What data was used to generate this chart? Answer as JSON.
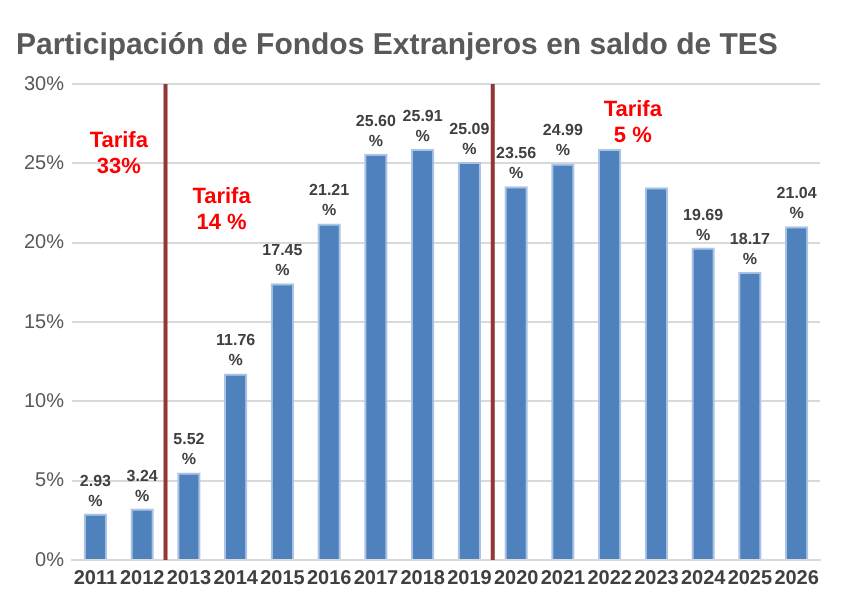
{
  "chart_data": {
    "type": "bar",
    "title": "Participación de Fondos Extranjeros en saldo de TES",
    "x": [
      2011,
      2012,
      2013,
      2014,
      2015,
      2016,
      2017,
      2018,
      2019,
      2020,
      2021,
      2022,
      2023,
      2024,
      2025,
      2026
    ],
    "values": [
      2.93,
      3.24,
      5.52,
      11.76,
      17.45,
      21.21,
      25.6,
      25.91,
      25.09,
      23.56,
      24.99,
      25.9,
      23.5,
      19.69,
      18.17,
      21.04
    ],
    "value_labels": [
      "2.93 %",
      "3.24 %",
      "5.52 %",
      "11.76 %",
      "17.45 %",
      "21.21 %",
      "25.60 %",
      "25.91 %",
      "25.09 %",
      "23.56 %",
      "24.99 %",
      null,
      null,
      "19.69 %",
      "18.17 %",
      "21.04 %"
    ],
    "color": "#4f81bd",
    "xlim": [
      2010.5,
      2026.5
    ],
    "xticks": [
      2011,
      2012,
      2013,
      2014,
      2015,
      2016,
      2017,
      2018,
      2019,
      2020,
      2021,
      2022,
      2023,
      2024,
      2025,
      2026
    ],
    "ylim": [
      0,
      30
    ],
    "yticks": [
      {
        "value": 0,
        "label": "0%"
      },
      {
        "value": 5,
        "label": "5%"
      },
      {
        "value": 10,
        "label": "10%"
      },
      {
        "value": 15,
        "label": "15%"
      },
      {
        "value": 20,
        "label": "20%"
      },
      {
        "value": 25,
        "label": "25%"
      },
      {
        "value": 30,
        "label": "30%"
      }
    ],
    "grid": "y",
    "ref_lines": [
      {
        "axis": "x",
        "value": 2012.5,
        "label": "Tarifa 33%",
        "color": "#943634"
      },
      {
        "axis": "x",
        "value": 2019.5,
        "color": "#943634"
      }
    ],
    "annotations": [
      "Tarifa 14 %",
      "Tarifa 5 %"
    ]
  }
}
